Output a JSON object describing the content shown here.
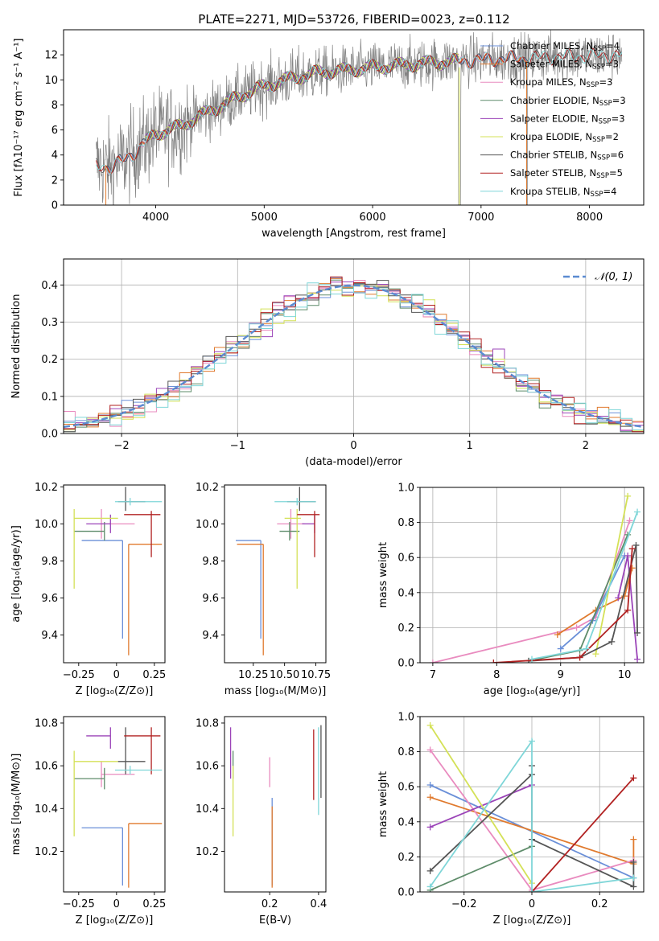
{
  "title": "PLATE=2271, MJD=53726, FIBERID=0023, z=0.112",
  "colors": {
    "chabrier_miles": "#6a8fd8",
    "salpeter_miles": "#e07a2e",
    "kroupa_miles": "#e98bbf",
    "chabrier_elodie": "#5e8c6a",
    "salpeter_elodie": "#9b44b8",
    "kroupa_elodie": "#d4e157",
    "chabrier_stelib": "#555555",
    "salpeter_stelib": "#b22222",
    "kroupa_stelib": "#7fd6d8",
    "spectrum": "#808080",
    "normal": "#5b8bd1"
  },
  "chart_data": [
    {
      "id": "spectrum",
      "type": "line",
      "xlabel": "wavelength [Angstrom, rest frame]",
      "ylabel": "Flux [fλ10⁻¹⁷ erg cm⁻² s⁻¹ A⁻¹]",
      "xlim": [
        3150,
        8500
      ],
      "ylim": [
        0,
        14
      ],
      "xticks": [
        4000,
        5000,
        6000,
        7000,
        8000
      ],
      "yticks": [
        0,
        2,
        4,
        6,
        8,
        10,
        12
      ],
      "legend_location": "top-right",
      "legend": [
        {
          "key": "chabrier_miles",
          "label": "Chabrier MILES, N",
          "sub": "SSP",
          "n": "=4"
        },
        {
          "key": "salpeter_miles",
          "label": "Salpeter MILES, N",
          "sub": "SSP",
          "n": "=3"
        },
        {
          "key": "kroupa_miles",
          "label": "Kroupa MILES, N",
          "sub": "SSP",
          "n": "=3"
        },
        {
          "key": "chabrier_elodie",
          "label": "Chabrier ELODIE, N",
          "sub": "SSP",
          "n": "=3"
        },
        {
          "key": "salpeter_elodie",
          "label": "Salpeter ELODIE, N",
          "sub": "SSP",
          "n": "=3"
        },
        {
          "key": "kroupa_elodie",
          "label": "Kroupa ELODIE, N",
          "sub": "SSP",
          "n": "=2"
        },
        {
          "key": "chabrier_stelib",
          "label": "Chabrier STELIB, N",
          "sub": "SSP",
          "n": "=6"
        },
        {
          "key": "salpeter_stelib",
          "label": "Salpeter STELIB, N",
          "sub": "SSP",
          "n": "=5"
        },
        {
          "key": "kroupa_stelib",
          "label": "Kroupa STELIB, N",
          "sub": "SSP",
          "n": "=4"
        }
      ],
      "model_continuum": {
        "x": [
          3450,
          3600,
          3800,
          4000,
          4200,
          4500,
          4800,
          5000,
          5200,
          5500,
          5800,
          6000,
          6300,
          6600,
          7000,
          7300,
          7600,
          8000,
          8300
        ],
        "y": [
          3.2,
          3.0,
          4.2,
          5.7,
          6.2,
          7.5,
          8.8,
          9.5,
          10.0,
          10.6,
          10.8,
          11.0,
          11.2,
          11.4,
          11.6,
          11.7,
          11.8,
          11.9,
          12.0
        ]
      }
    },
    {
      "id": "residual_histogram",
      "type": "histogram",
      "xlabel": "(data-model)/error",
      "ylabel": "Normed distribution",
      "xlim": [
        -2.5,
        2.5
      ],
      "ylim": [
        0,
        0.47
      ],
      "xticks": [
        -2,
        -1,
        0,
        1,
        2
      ],
      "yticks": [
        0.0,
        0.1,
        0.2,
        0.3,
        0.4
      ],
      "grid": true,
      "bin_width": 0.1,
      "legend_location": "top-right",
      "reference_curve": {
        "label": "𝒩(0, 1)",
        "mean": 0,
        "std": 1,
        "style": "dashed"
      }
    },
    {
      "id": "age_vs_Z",
      "type": "errorbar",
      "xlabel": "Z [log₁₀(Z/Z⊙)]",
      "ylabel": "age  [log₁₀(age/yr)]",
      "xlim": [
        -0.35,
        0.32
      ],
      "ylim": [
        9.25,
        10.21
      ],
      "xticks": [
        -0.25,
        0.0,
        0.25
      ],
      "yticks": [
        9.4,
        9.6,
        9.8,
        10.0,
        10.2
      ],
      "points": [
        {
          "key": "chabrier_miles",
          "x": 0.04,
          "xerr": [
            0.27,
            0.0
          ],
          "y": 9.91,
          "yerr": [
            0.53,
            0.0
          ]
        },
        {
          "key": "salpeter_miles",
          "x": 0.08,
          "xerr": [
            0.0,
            0.22
          ],
          "y": 9.89,
          "yerr": [
            0.6,
            0.0
          ]
        },
        {
          "key": "kroupa_miles",
          "x": -0.1,
          "xerr": [
            0.0,
            0.22
          ],
          "y": 10.0,
          "yerr": [
            0.08,
            0.08
          ]
        },
        {
          "key": "chabrier_elodie",
          "x": -0.08,
          "xerr": [
            0.2,
            0.0
          ],
          "y": 9.96,
          "yerr": [
            0.05,
            0.05
          ]
        },
        {
          "key": "salpeter_elodie",
          "x": -0.04,
          "xerr": [
            0.16,
            0.0
          ],
          "y": 10.0,
          "yerr": [
            0.05,
            0.05
          ]
        },
        {
          "key": "kroupa_elodie",
          "x": -0.28,
          "xerr": [
            0.0,
            0.29
          ],
          "y": 10.03,
          "yerr": [
            0.38,
            0.05
          ]
        },
        {
          "key": "chabrier_stelib",
          "x": 0.06,
          "xerr": [
            0.05,
            0.13
          ],
          "y": 10.12,
          "yerr": [
            0.05,
            0.08
          ]
        },
        {
          "key": "salpeter_stelib",
          "x": 0.23,
          "xerr": [
            0.18,
            0.06
          ],
          "y": 10.05,
          "yerr": [
            0.23,
            0.02
          ]
        },
        {
          "key": "kroupa_stelib",
          "x": 0.09,
          "xerr": [
            0.1,
            0.21
          ],
          "y": 10.12,
          "yerr": [
            0.02,
            0.02
          ]
        }
      ]
    },
    {
      "id": "age_vs_mass",
      "type": "errorbar",
      "xlabel": "mass [log₁₀(M/M⊙)]",
      "ylabel": "",
      "xlim": [
        10.02,
        10.83
      ],
      "ylim": [
        9.25,
        10.21
      ],
      "xticks": [
        10.25,
        10.5,
        10.75
      ],
      "xticklabels": [
        "10.25",
        "10.50",
        "10.75"
      ],
      "yticks": [
        9.4,
        9.6,
        9.8,
        10.0,
        10.2
      ],
      "points": [
        {
          "key": "chabrier_miles",
          "x": 10.31,
          "xerr": [
            0.2,
            0.0
          ],
          "y": 9.91,
          "yerr": [
            0.53,
            0.0
          ]
        },
        {
          "key": "salpeter_miles",
          "x": 10.33,
          "xerr": [
            0.21,
            0.0
          ],
          "y": 9.89,
          "yerr": [
            0.6,
            0.0
          ]
        },
        {
          "key": "kroupa_miles",
          "x": 10.55,
          "xerr": [
            0.11,
            0.11
          ],
          "y": 10.0,
          "yerr": [
            0.08,
            0.08
          ]
        },
        {
          "key": "chabrier_elodie",
          "x": 10.54,
          "xerr": [
            0.08,
            0.08
          ],
          "y": 9.96,
          "yerr": [
            0.05,
            0.05
          ]
        },
        {
          "key": "salpeter_elodie",
          "x": 10.74,
          "xerr": [
            0.1,
            0.0
          ],
          "y": 10.0,
          "yerr": [
            0.05,
            0.05
          ]
        },
        {
          "key": "kroupa_elodie",
          "x": 10.6,
          "xerr": [
            0.1,
            0.03
          ],
          "y": 10.03,
          "yerr": [
            0.38,
            0.05
          ]
        },
        {
          "key": "chabrier_stelib",
          "x": 10.62,
          "xerr": [
            0.1,
            0.13
          ],
          "y": 10.12,
          "yerr": [
            0.05,
            0.08
          ]
        },
        {
          "key": "salpeter_stelib",
          "x": 10.74,
          "xerr": [
            0.14,
            0.04
          ],
          "y": 10.05,
          "yerr": [
            0.23,
            0.02
          ]
        },
        {
          "key": "kroupa_stelib",
          "x": 10.6,
          "xerr": [
            0.18,
            0.15
          ],
          "y": 10.12,
          "yerr": [
            0.02,
            0.02
          ]
        }
      ]
    },
    {
      "id": "massweight_vs_age",
      "type": "line",
      "xlabel": "age  [log₁₀(age/yr)]",
      "ylabel": "mass weight",
      "xlim": [
        6.8,
        10.3
      ],
      "ylim": [
        0,
        1.0
      ],
      "xticks": [
        7,
        8,
        9,
        10
      ],
      "yticks": [
        0.0,
        0.2,
        0.4,
        0.6,
        0.8,
        1.0
      ],
      "grid": true,
      "series": [
        {
          "key": "kroupa_miles",
          "x": [
            7.0,
            9.25,
            9.55,
            10.08
          ],
          "y": [
            0.0,
            0.2,
            0.26,
            0.81
          ]
        },
        {
          "key": "salpeter_miles",
          "x": [
            8.95,
            9.55,
            10.0,
            10.12
          ],
          "y": [
            0.16,
            0.3,
            0.38,
            0.54
          ]
        },
        {
          "key": "chabrier_miles",
          "x": [
            9.0,
            9.5,
            10.0
          ],
          "y": [
            0.08,
            0.24,
            0.61
          ]
        },
        {
          "key": "chabrier_elodie",
          "x": [
            8.5,
            9.3,
            10.05
          ],
          "y": [
            0.01,
            0.07,
            0.73
          ]
        },
        {
          "key": "salpeter_elodie",
          "x": [
            9.9,
            10.05,
            10.2
          ],
          "y": [
            0.37,
            0.61,
            0.02
          ]
        },
        {
          "key": "kroupa_elodie",
          "x": [
            9.55,
            10.05
          ],
          "y": [
            0.05,
            0.95
          ]
        },
        {
          "key": "chabrier_stelib",
          "x": [
            8.5,
            9.3,
            9.8,
            10.18,
            10.2
          ],
          "y": [
            0.01,
            0.03,
            0.12,
            0.67,
            0.17
          ]
        },
        {
          "key": "salpeter_stelib",
          "x": [
            7.95,
            9.3,
            10.05,
            10.12
          ],
          "y": [
            0.0,
            0.03,
            0.3,
            0.65
          ]
        },
        {
          "key": "kroupa_stelib",
          "x": [
            8.55,
            9.4,
            10.2
          ],
          "y": [
            0.02,
            0.08,
            0.86
          ]
        }
      ]
    },
    {
      "id": "mass_vs_Z",
      "type": "errorbar",
      "xlabel": "Z [log₁₀(Z/Z⊙)]",
      "ylabel": "mass [log₁₀(M/M⊙)]",
      "xlim": [
        -0.35,
        0.32
      ],
      "ylim": [
        10.01,
        10.83
      ],
      "xticks": [
        -0.25,
        0.0,
        0.25
      ],
      "yticks": [
        10.2,
        10.4,
        10.6,
        10.8
      ],
      "points": [
        {
          "key": "chabrier_miles",
          "x": 0.04,
          "xerr": [
            0.27,
            0.0
          ],
          "y": 10.31,
          "yerr": [
            0.27,
            0.0
          ]
        },
        {
          "key": "salpeter_miles",
          "x": 0.08,
          "xerr": [
            0.0,
            0.22
          ],
          "y": 10.33,
          "yerr": [
            0.3,
            0.0
          ]
        },
        {
          "key": "kroupa_miles",
          "x": -0.1,
          "xerr": [
            0.0,
            0.22
          ],
          "y": 10.56,
          "yerr": [
            0.06,
            0.06
          ]
        },
        {
          "key": "chabrier_elodie",
          "x": -0.08,
          "xerr": [
            0.2,
            0.0
          ],
          "y": 10.54,
          "yerr": [
            0.05,
            0.05
          ]
        },
        {
          "key": "salpeter_elodie",
          "x": -0.04,
          "xerr": [
            0.16,
            0.0
          ],
          "y": 10.74,
          "yerr": [
            0.06,
            0.04
          ]
        },
        {
          "key": "kroupa_elodie",
          "x": -0.28,
          "xerr": [
            0.0,
            0.29
          ],
          "y": 10.62,
          "yerr": [
            0.35,
            0.05
          ]
        },
        {
          "key": "chabrier_stelib",
          "x": 0.06,
          "xerr": [
            0.05,
            0.13
          ],
          "y": 10.62,
          "yerr": [
            0.06,
            0.16
          ]
        },
        {
          "key": "salpeter_stelib",
          "x": 0.23,
          "xerr": [
            0.18,
            0.06
          ],
          "y": 10.74,
          "yerr": [
            0.18,
            0.04
          ]
        },
        {
          "key": "kroupa_stelib",
          "x": 0.09,
          "xerr": [
            0.1,
            0.21
          ],
          "y": 10.58,
          "yerr": [
            0.02,
            0.02
          ]
        }
      ]
    },
    {
      "id": "mass_vs_ebv",
      "type": "errorbar",
      "xlabel": "E(B-V)",
      "ylabel": "",
      "xlim": [
        0.015,
        0.43
      ],
      "ylim": [
        10.01,
        10.83
      ],
      "xticks": [
        0.2,
        0.4
      ],
      "yticks": [
        10.2,
        10.4,
        10.6,
        10.8
      ],
      "points": [
        {
          "key": "chabrier_miles",
          "x": 0.21,
          "xerr": [
            0,
            0
          ],
          "y": 10.45,
          "yerr": [
            0.41,
            0.0
          ]
        },
        {
          "key": "salpeter_miles",
          "x": 0.21,
          "xerr": [
            0,
            0
          ],
          "y": 10.41,
          "yerr": [
            0.38,
            0.0
          ]
        },
        {
          "key": "kroupa_miles",
          "x": 0.2,
          "xerr": [
            0,
            0
          ],
          "y": 10.6,
          "yerr": [
            0.1,
            0.04
          ]
        },
        {
          "key": "chabrier_elodie",
          "x": 0.05,
          "xerr": [
            0,
            0
          ],
          "y": 10.6,
          "yerr": [
            0.06,
            0.07
          ]
        },
        {
          "key": "salpeter_elodie",
          "x": 0.04,
          "xerr": [
            0,
            0
          ],
          "y": 10.74,
          "yerr": [
            0.2,
            0.04
          ]
        },
        {
          "key": "kroupa_elodie",
          "x": 0.05,
          "xerr": [
            0,
            0
          ],
          "y": 10.6,
          "yerr": [
            0.33,
            0.0
          ]
        },
        {
          "key": "chabrier_stelib",
          "x": 0.41,
          "xerr": [
            0,
            0
          ],
          "y": 10.62,
          "yerr": [
            0.17,
            0.17
          ]
        },
        {
          "key": "salpeter_stelib",
          "x": 0.38,
          "xerr": [
            0,
            0
          ],
          "y": 10.6,
          "yerr": [
            0.16,
            0.17
          ]
        },
        {
          "key": "kroupa_stelib",
          "x": 0.4,
          "xerr": [
            0,
            0
          ],
          "y": 10.58,
          "yerr": [
            0.21,
            0.2
          ]
        }
      ]
    },
    {
      "id": "massweight_vs_Z",
      "type": "line",
      "xlabel": "Z [log₁₀(Z/Z⊙)]",
      "ylabel": "mass weight",
      "xlim": [
        -0.33,
        0.33
      ],
      "ylim": [
        0,
        1.0
      ],
      "xticks": [
        -0.2,
        0.0,
        0.2
      ],
      "yticks": [
        0.0,
        0.2,
        0.4,
        0.6,
        0.8,
        1.0
      ],
      "grid": true,
      "series": [
        {
          "key": "chabrier_miles",
          "x": [
            -0.3,
            0.3
          ],
          "y": [
            0.61,
            0.08
          ]
        },
        {
          "key": "salpeter_miles",
          "x": [
            -0.3,
            0.3,
            0.3
          ],
          "y": [
            0.54,
            0.16,
            0.3
          ]
        },
        {
          "key": "kroupa_miles",
          "x": [
            -0.3,
            0.0,
            0.3
          ],
          "y": [
            0.81,
            0.01,
            0.18
          ]
        },
        {
          "key": "chabrier_elodie",
          "x": [
            -0.3,
            0.0
          ],
          "y": [
            0.01,
            0.26
          ]
        },
        {
          "key": "salpeter_elodie",
          "x": [
            -0.3,
            0.0
          ],
          "y": [
            0.37,
            0.61
          ]
        },
        {
          "key": "kroupa_elodie",
          "x": [
            -0.3,
            0.0
          ],
          "y": [
            0.95,
            0.05
          ]
        },
        {
          "key": "chabrier_stelib",
          "x": [
            -0.3,
            0.0,
            0.0,
            0.0,
            0.3,
            0.3
          ],
          "y": [
            0.12,
            0.67,
            0.72,
            0.3,
            0.03,
            0.17
          ]
        },
        {
          "key": "salpeter_stelib",
          "x": [
            0.0,
            0.3
          ],
          "y": [
            0.0,
            0.65
          ]
        },
        {
          "key": "kroupa_stelib",
          "x": [
            -0.3,
            0.0,
            0.0,
            0.3
          ],
          "y": [
            0.03,
            0.86,
            0.0,
            0.08
          ]
        }
      ]
    }
  ]
}
